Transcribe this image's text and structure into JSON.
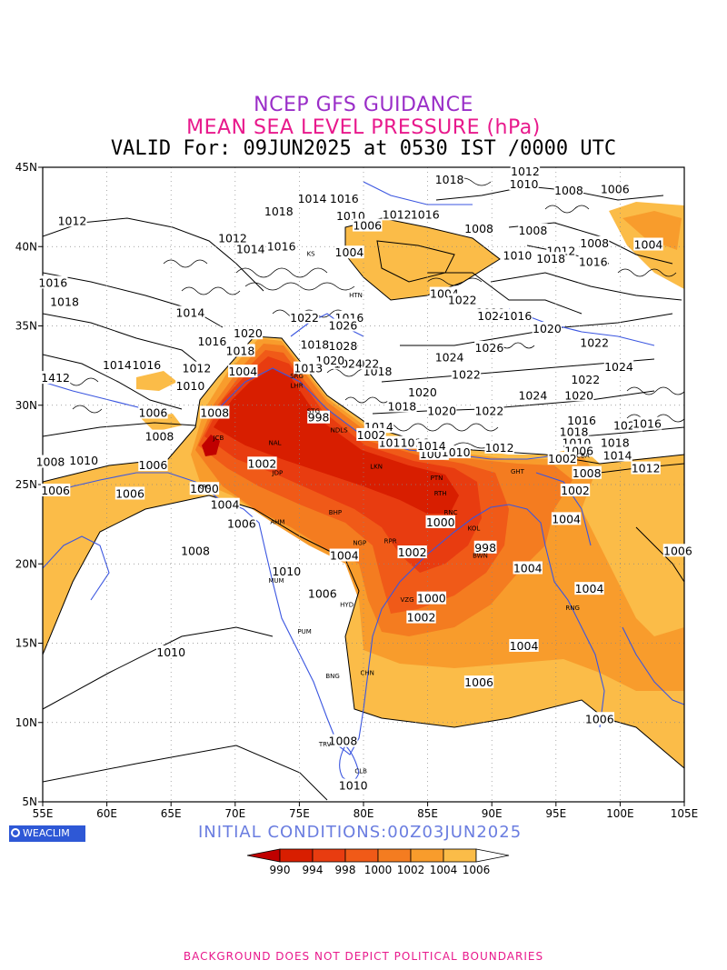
{
  "header": {
    "line1": "NCEP GFS GUIDANCE",
    "line2": "MEAN SEA LEVEL PRESSURE (hPa)",
    "line3": "VALID For: 09JUN2025 at 0530 IST /0000 UTC"
  },
  "axes": {
    "lon_labels": [
      "55E",
      "60E",
      "65E",
      "70E",
      "75E",
      "80E",
      "85E",
      "90E",
      "95E",
      "100E",
      "105E"
    ],
    "lat_labels": [
      "45N",
      "40N",
      "35N",
      "30N",
      "25N",
      "20N",
      "15N",
      "10N",
      "5N"
    ],
    "lon_range": [
      55,
      105
    ],
    "lat_range": [
      5,
      45
    ],
    "grid": true
  },
  "colorbar": {
    "levels": [
      "990",
      "994",
      "998",
      "1000",
      "1002",
      "1004",
      "1006"
    ],
    "colors": [
      "#c00000",
      "#d81e00",
      "#e83c10",
      "#f05a18",
      "#f47c20",
      "#f89c2c",
      "#fbbc48",
      "#ffffff"
    ]
  },
  "contour_labels": [
    {
      "text": "1012",
      "lon": 57.3,
      "lat": 41.6
    },
    {
      "text": "1016",
      "lon": 55.8,
      "lat": 37.7
    },
    {
      "text": "1018",
      "lon": 56.7,
      "lat": 36.5
    },
    {
      "text": "1014",
      "lon": 60.8,
      "lat": 32.5
    },
    {
      "text": "1016",
      "lon": 63.1,
      "lat": 32.5
    },
    {
      "text": "1412",
      "lon": 56.0,
      "lat": 31.7
    },
    {
      "text": "1010",
      "lon": 58.2,
      "lat": 26.5
    },
    {
      "text": "1008",
      "lon": 55.6,
      "lat": 26.4
    },
    {
      "text": "1006",
      "lon": 63.6,
      "lat": 29.5
    },
    {
      "text": "1008",
      "lon": 64.1,
      "lat": 28.0
    },
    {
      "text": "1006",
      "lon": 63.6,
      "lat": 26.2
    },
    {
      "text": "1006",
      "lon": 61.8,
      "lat": 24.4
    },
    {
      "text": "1006",
      "lon": 56.0,
      "lat": 24.6
    },
    {
      "text": "1008",
      "lon": 68.4,
      "lat": 29.5
    },
    {
      "text": "1010",
      "lon": 66.5,
      "lat": 31.2
    },
    {
      "text": "1012",
      "lon": 67.0,
      "lat": 32.3
    },
    {
      "text": "1016",
      "lon": 68.2,
      "lat": 34.0
    },
    {
      "text": "1014",
      "lon": 66.5,
      "lat": 35.8
    },
    {
      "text": "1012",
      "lon": 69.8,
      "lat": 40.5
    },
    {
      "text": "1014",
      "lon": 71.2,
      "lat": 39.8
    },
    {
      "text": "1016",
      "lon": 73.6,
      "lat": 40.0
    },
    {
      "text": "1018",
      "lon": 73.4,
      "lat": 42.2
    },
    {
      "text": "1014",
      "lon": 76.0,
      "lat": 43.0
    },
    {
      "text": "1016",
      "lon": 78.5,
      "lat": 43.0
    },
    {
      "text": "1010",
      "lon": 79.0,
      "lat": 41.9
    },
    {
      "text": "1006",
      "lon": 80.3,
      "lat": 41.3
    },
    {
      "text": "1004",
      "lon": 78.9,
      "lat": 39.6
    },
    {
      "text": "1012",
      "lon": 82.6,
      "lat": 42.0
    },
    {
      "text": "1016",
      "lon": 84.8,
      "lat": 42.0
    },
    {
      "text": "1018",
      "lon": 86.7,
      "lat": 44.2
    },
    {
      "text": "1008",
      "lon": 89.0,
      "lat": 41.1
    },
    {
      "text": "1012",
      "lon": 92.6,
      "lat": 44.7
    },
    {
      "text": "1010",
      "lon": 92.5,
      "lat": 43.9
    },
    {
      "text": "1008",
      "lon": 96.0,
      "lat": 43.5
    },
    {
      "text": "1006",
      "lon": 99.6,
      "lat": 43.6
    },
    {
      "text": "1008",
      "lon": 93.2,
      "lat": 41.0
    },
    {
      "text": "1010",
      "lon": 92.0,
      "lat": 39.4
    },
    {
      "text": "1012",
      "lon": 95.4,
      "lat": 39.7
    },
    {
      "text": "1018",
      "lon": 94.6,
      "lat": 39.2
    },
    {
      "text": "1016",
      "lon": 97.9,
      "lat": 39.0
    },
    {
      "text": "1008",
      "lon": 98.0,
      "lat": 40.2
    },
    {
      "text": "1004",
      "lon": 102.2,
      "lat": 40.1
    },
    {
      "text": "1004",
      "lon": 86.3,
      "lat": 37.0
    },
    {
      "text": "1022",
      "lon": 87.7,
      "lat": 36.6
    },
    {
      "text": "1018",
      "lon": 89.9,
      "lat": 35.8
    },
    {
      "text": "1024",
      "lon": 90.0,
      "lat": 35.6
    },
    {
      "text": "1016",
      "lon": 92.0,
      "lat": 35.6
    },
    {
      "text": "1020",
      "lon": 94.3,
      "lat": 34.8
    },
    {
      "text": "1022",
      "lon": 98.0,
      "lat": 33.9
    },
    {
      "text": "1024",
      "lon": 99.9,
      "lat": 32.4
    },
    {
      "text": "1026",
      "lon": 89.8,
      "lat": 33.6
    },
    {
      "text": "1024",
      "lon": 86.7,
      "lat": 33.0
    },
    {
      "text": "1022",
      "lon": 88.0,
      "lat": 31.9
    },
    {
      "text": "1022",
      "lon": 97.3,
      "lat": 31.6
    },
    {
      "text": "1024",
      "lon": 93.2,
      "lat": 30.6
    },
    {
      "text": "1020",
      "lon": 96.8,
      "lat": 30.6
    },
    {
      "text": "1020",
      "lon": 84.6,
      "lat": 30.8
    },
    {
      "text": "1018",
      "lon": 83.0,
      "lat": 29.9
    },
    {
      "text": "1020",
      "lon": 86.1,
      "lat": 29.6
    },
    {
      "text": "1022",
      "lon": 89.8,
      "lat": 29.6
    },
    {
      "text": "1016",
      "lon": 97.0,
      "lat": 29.0
    },
    {
      "text": "1018",
      "lon": 96.4,
      "lat": 28.3
    },
    {
      "text": "1010",
      "lon": 96.6,
      "lat": 27.6
    },
    {
      "text": "1006",
      "lon": 96.8,
      "lat": 27.1
    },
    {
      "text": "1018",
      "lon": 99.6,
      "lat": 27.6
    },
    {
      "text": "1014",
      "lon": 99.8,
      "lat": 26.8
    },
    {
      "text": "1012",
      "lon": 102.0,
      "lat": 26.0
    },
    {
      "text": "1020",
      "lon": 100.6,
      "lat": 28.7
    },
    {
      "text": "1016",
      "lon": 102.1,
      "lat": 28.8
    },
    {
      "text": "1014",
      "lon": 81.2,
      "lat": 28.6
    },
    {
      "text": "1010",
      "lon": 82.3,
      "lat": 27.6
    },
    {
      "text": "1016",
      "lon": 84.0,
      "lat": 27.6
    },
    {
      "text": "1008",
      "lon": 85.5,
      "lat": 26.9
    },
    {
      "text": "1010",
      "lon": 87.2,
      "lat": 27.0
    },
    {
      "text": "1012",
      "lon": 90.6,
      "lat": 27.3
    },
    {
      "text": "1014",
      "lon": 85.3,
      "lat": 27.4
    },
    {
      "text": "1002",
      "lon": 80.6,
      "lat": 28.1
    },
    {
      "text": "1016",
      "lon": 78.9,
      "lat": 35.5
    },
    {
      "text": "1026",
      "lon": 78.4,
      "lat": 35.0
    },
    {
      "text": "1028",
      "lon": 78.4,
      "lat": 33.7
    },
    {
      "text": "1018",
      "lon": 81.1,
      "lat": 32.1
    },
    {
      "text": "1022",
      "lon": 80.1,
      "lat": 32.6
    },
    {
      "text": "1024",
      "lon": 78.8,
      "lat": 32.6
    },
    {
      "text": "1020",
      "lon": 77.4,
      "lat": 32.8
    },
    {
      "text": "1013",
      "lon": 75.7,
      "lat": 32.3
    },
    {
      "text": "1018",
      "lon": 76.2,
      "lat": 33.8
    },
    {
      "text": "1022",
      "lon": 75.4,
      "lat": 35.5
    },
    {
      "text": "1020",
      "lon": 71.0,
      "lat": 34.5
    },
    {
      "text": "1018",
      "lon": 70.4,
      "lat": 33.4
    },
    {
      "text": "1004",
      "lon": 70.6,
      "lat": 32.1
    },
    {
      "text": "998",
      "lon": 76.5,
      "lat": 29.2
    },
    {
      "text": "1002",
      "lon": 72.1,
      "lat": 26.3
    },
    {
      "text": "1000",
      "lon": 67.6,
      "lat": 24.7
    },
    {
      "text": "1004",
      "lon": 69.2,
      "lat": 23.7
    },
    {
      "text": "1006",
      "lon": 70.5,
      "lat": 22.5
    },
    {
      "text": "1008",
      "lon": 66.9,
      "lat": 20.8
    },
    {
      "text": "1000",
      "lon": 86.0,
      "lat": 22.6
    },
    {
      "text": "1004",
      "lon": 78.5,
      "lat": 20.5
    },
    {
      "text": "1002",
      "lon": 83.8,
      "lat": 20.7
    },
    {
      "text": "998",
      "lon": 89.5,
      "lat": 21.0
    },
    {
      "text": "1010",
      "lon": 74.0,
      "lat": 19.5
    },
    {
      "text": "1006",
      "lon": 76.8,
      "lat": 18.1
    },
    {
      "text": "1000",
      "lon": 85.3,
      "lat": 17.8
    },
    {
      "text": "1002",
      "lon": 84.5,
      "lat": 16.6
    },
    {
      "text": "1004",
      "lon": 92.5,
      "lat": 14.8
    },
    {
      "text": "1002",
      "lon": 96.5,
      "lat": 24.6
    },
    {
      "text": "1002",
      "lon": 95.5,
      "lat": 26.6
    },
    {
      "text": "1008",
      "lon": 97.4,
      "lat": 25.7
    },
    {
      "text": "1004",
      "lon": 95.8,
      "lat": 22.8
    },
    {
      "text": "1004",
      "lon": 92.8,
      "lat": 19.7
    },
    {
      "text": "1004",
      "lon": 97.6,
      "lat": 18.4
    },
    {
      "text": "1006",
      "lon": 104.5,
      "lat": 20.8
    },
    {
      "text": "1006",
      "lon": 89.0,
      "lat": 12.5
    },
    {
      "text": "1006",
      "lon": 98.4,
      "lat": 10.2
    },
    {
      "text": "1010",
      "lon": 65.0,
      "lat": 14.4
    },
    {
      "text": "1008",
      "lon": 78.4,
      "lat": 8.8
    },
    {
      "text": "1010",
      "lon": 79.2,
      "lat": 6.0
    }
  ],
  "cities": [
    {
      "code": "SRG",
      "lon": 74.8,
      "lat": 31.7
    },
    {
      "code": "LHR",
      "lon": 74.8,
      "lat": 31.1
    },
    {
      "code": "STG",
      "lon": 76.1,
      "lat": 29.5
    },
    {
      "code": "NDLS",
      "lon": 78.1,
      "lat": 28.3
    },
    {
      "code": "JCB",
      "lon": 68.7,
      "lat": 27.8
    },
    {
      "code": "NAL",
      "lon": 73.1,
      "lat": 27.5
    },
    {
      "code": "JDP",
      "lon": 73.3,
      "lat": 25.6
    },
    {
      "code": "LKN",
      "lon": 81.0,
      "lat": 26.0
    },
    {
      "code": "PTN",
      "lon": 85.7,
      "lat": 25.3
    },
    {
      "code": "RTH",
      "lon": 86.0,
      "lat": 24.3
    },
    {
      "code": "RNC",
      "lon": 86.8,
      "lat": 23.1
    },
    {
      "code": "KOL",
      "lon": 88.6,
      "lat": 22.1
    },
    {
      "code": "BHP",
      "lon": 77.8,
      "lat": 23.1
    },
    {
      "code": "AHM",
      "lon": 73.3,
      "lat": 22.5
    },
    {
      "code": "KRC",
      "lon": 67.6,
      "lat": 24.7
    },
    {
      "code": "NGP",
      "lon": 79.7,
      "lat": 21.2
    },
    {
      "code": "RPR",
      "lon": 82.1,
      "lat": 21.3
    },
    {
      "code": "BWN",
      "lon": 89.1,
      "lat": 20.4
    },
    {
      "code": "MUM",
      "lon": 73.2,
      "lat": 18.8
    },
    {
      "code": "HYD",
      "lon": 78.7,
      "lat": 17.3
    },
    {
      "code": "VZG",
      "lon": 83.4,
      "lat": 17.6
    },
    {
      "code": "PUM",
      "lon": 75.4,
      "lat": 15.6
    },
    {
      "code": "BNG",
      "lon": 77.6,
      "lat": 12.8
    },
    {
      "code": "CHN",
      "lon": 80.3,
      "lat": 13.0
    },
    {
      "code": "TRV",
      "lon": 77.0,
      "lat": 8.5
    },
    {
      "code": "CLB",
      "lon": 79.8,
      "lat": 6.8
    },
    {
      "code": "HTN",
      "lon": 79.4,
      "lat": 36.8
    },
    {
      "code": "KS",
      "lon": 75.9,
      "lat": 39.4
    },
    {
      "code": "GHT",
      "lon": 92.0,
      "lat": 25.7
    },
    {
      "code": "CBA",
      "lon": 97.1,
      "lat": 26.7
    },
    {
      "code": "RNG",
      "lon": 96.3,
      "lat": 17.1
    }
  ],
  "initial_conditions": "INITIAL CONDITIONS:00Z03JUN2025",
  "brand": "WEACLIM",
  "footer": "BACKGROUND DOES NOT DEPICT POLITICAL BOUNDARIES"
}
